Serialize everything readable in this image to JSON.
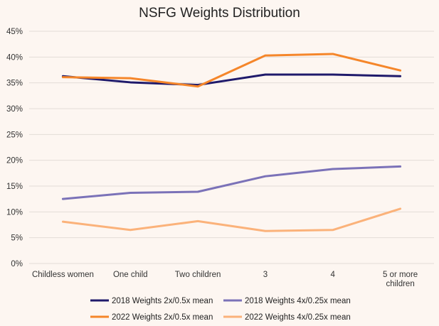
{
  "chart_data": {
    "type": "line",
    "title": "NSFG Weights Distribution",
    "xlabel": "",
    "ylabel": "",
    "categories": [
      "Childless women",
      "One child",
      "Two children",
      "3",
      "4",
      "5 or more children"
    ],
    "yticks": [
      "0%",
      "5%",
      "10%",
      "15%",
      "20%",
      "25%",
      "30%",
      "35%",
      "40%",
      "45%"
    ],
    "ylim": [
      0,
      45
    ],
    "grid": true,
    "legend_position": "bottom",
    "series": [
      {
        "name": "2018 Weights 2x/0.5x mean",
        "color": "#1f1a6b",
        "values": [
          36.3,
          35.1,
          34.6,
          36.6,
          36.6,
          36.3
        ]
      },
      {
        "name": "2018 Weights 4x/0.25x mean",
        "color": "#7b72b8",
        "values": [
          12.5,
          13.7,
          13.9,
          16.9,
          18.3,
          18.8
        ]
      },
      {
        "name": "2022 Weights 2x/0.5x mean",
        "color": "#f5862a",
        "values": [
          36.1,
          35.9,
          34.3,
          40.3,
          40.6,
          37.4
        ]
      },
      {
        "name": "2022 Weights 4x/0.25x mean",
        "color": "#fbb27a",
        "values": [
          8.1,
          6.5,
          8.2,
          6.3,
          6.5,
          10.6
        ]
      }
    ]
  }
}
